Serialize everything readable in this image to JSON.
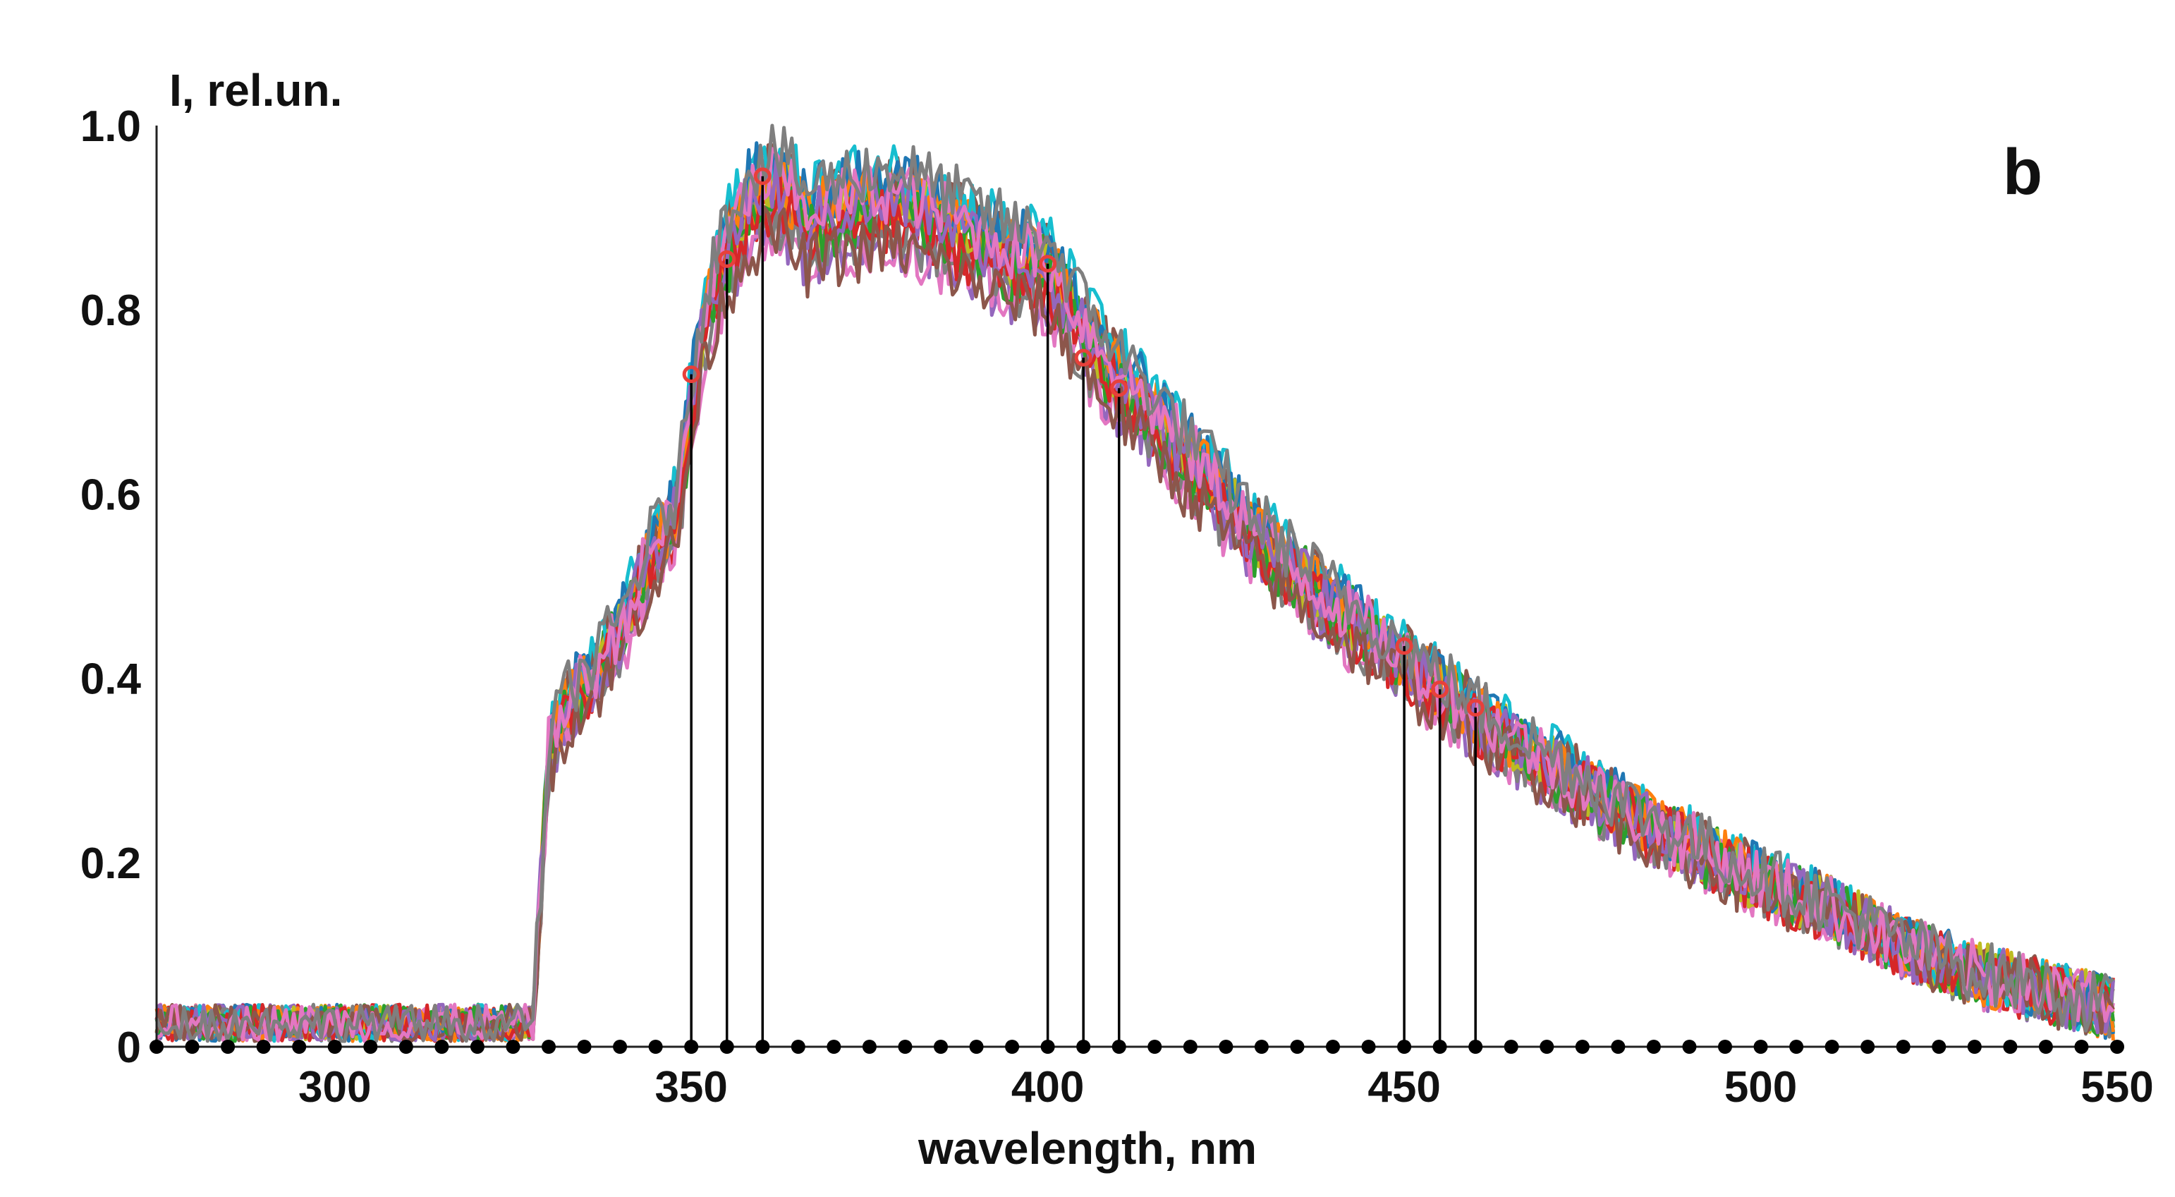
{
  "chart_data": {
    "type": "line",
    "title": "",
    "panel_label": "b",
    "xlabel": "wavelength, nm",
    "ylabel": "I, rel.un.",
    "xlim": [
      275,
      550
    ],
    "ylim": [
      0,
      1.0
    ],
    "x_ticks": [
      300,
      350,
      400,
      450,
      500,
      550
    ],
    "y_ticks": [
      {
        "value": 0,
        "label": "0"
      },
      {
        "value": 0.2,
        "label": "0.2"
      },
      {
        "value": 0.4,
        "label": "0.4"
      },
      {
        "value": 0.6,
        "label": "0.6"
      },
      {
        "value": 0.8,
        "label": "0.8"
      },
      {
        "value": 1.0,
        "label": "1.0"
      }
    ],
    "grid": false,
    "legend": "none",
    "envelope": {
      "x": [
        275,
        300,
        325,
        328,
        330,
        333,
        336,
        340,
        344,
        348,
        350,
        352,
        355,
        358,
        362,
        366,
        370,
        375,
        380,
        385,
        390,
        395,
        400,
        402,
        405,
        410,
        420,
        430,
        440,
        450,
        460,
        470,
        480,
        490,
        500,
        510,
        520,
        530,
        540,
        550
      ],
      "y": [
        0.02,
        0.02,
        0.02,
        0.05,
        0.32,
        0.38,
        0.4,
        0.45,
        0.53,
        0.58,
        0.7,
        0.8,
        0.87,
        0.92,
        0.94,
        0.9,
        0.91,
        0.92,
        0.92,
        0.9,
        0.88,
        0.86,
        0.85,
        0.82,
        0.78,
        0.73,
        0.64,
        0.55,
        0.48,
        0.42,
        0.36,
        0.31,
        0.26,
        0.22,
        0.18,
        0.15,
        0.11,
        0.08,
        0.06,
        0.04
      ]
    },
    "series_colors": [
      "#1f77b4",
      "#ff7f0e",
      "#2ca02c",
      "#d62728",
      "#9467bd",
      "#8c564b",
      "#e377c2",
      "#7f7f7f",
      "#bcbd22",
      "#17becf"
    ],
    "markers": {
      "x": [
        350,
        355,
        360,
        400,
        405,
        410,
        450,
        455,
        460
      ],
      "y": [
        0.73,
        0.855,
        0.945,
        0.85,
        0.748,
        0.715,
        0.435,
        0.388,
        0.368
      ],
      "color": "#e8403a"
    },
    "baseline_dots": {
      "start": 275,
      "end": 550,
      "step": 5,
      "color": "#000000"
    }
  }
}
